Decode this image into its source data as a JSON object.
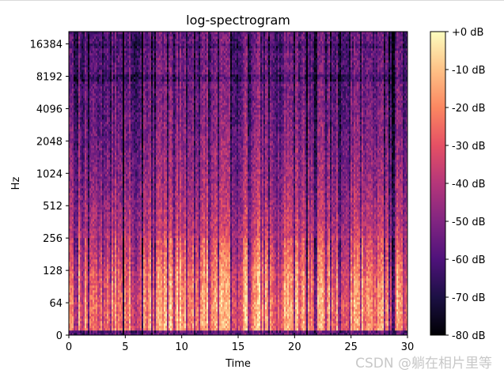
{
  "watermark": "CSDN @躺在相片里等",
  "chart_data": {
    "type": "heatmap",
    "title": "log-spectrogram",
    "xlabel": "Time",
    "ylabel": "Hz",
    "x_range": [
      0,
      30
    ],
    "x_ticks": [
      0,
      5,
      10,
      15,
      20,
      25,
      30
    ],
    "y_scale": "symlog",
    "y_ticks": [
      0,
      64,
      128,
      256,
      512,
      1024,
      2048,
      4096,
      8192,
      16384
    ],
    "y_tick_labels": [
      "0",
      "64",
      "128",
      "256",
      "512",
      "1024",
      "2048",
      "4096",
      "8192",
      "16384"
    ],
    "colormap": "magma",
    "colorbar": {
      "range_db": [
        -80,
        0
      ],
      "ticks": [
        0,
        -10,
        -20,
        -30,
        -40,
        -50,
        -60,
        -70,
        -80
      ],
      "tick_labels": [
        "+0 dB",
        "-10 dB",
        "-20 dB",
        "-30 dB",
        "-40 dB",
        "-50 dB",
        "-60 dB",
        "-70 dB",
        "-80 dB"
      ]
    },
    "magma_stops": [
      "#000004",
      "#1c1044",
      "#4f127b",
      "#812581",
      "#b5367a",
      "#e55064",
      "#fb8761",
      "#fec287",
      "#fcfdbf"
    ]
  }
}
